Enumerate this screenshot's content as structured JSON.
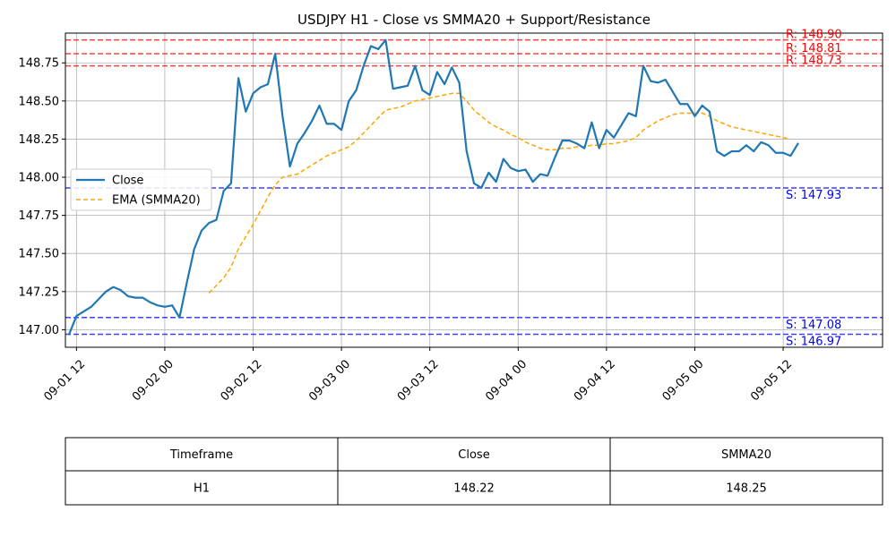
{
  "chart_data": {
    "type": "line",
    "title": "USDJPY H1 - Close vs SMMA20 + Support/Resistance",
    "xlabel": "",
    "ylabel": "",
    "ylim": [
      146.885,
      148.945
    ],
    "x_range_hours": [
      -1.5,
      109.5
    ],
    "x_ticks": [
      {
        "label": "09-01 12",
        "hour": 0
      },
      {
        "label": "09-02 00",
        "hour": 12
      },
      {
        "label": "09-02 12",
        "hour": 24
      },
      {
        "label": "09-03 00",
        "hour": 36
      },
      {
        "label": "09-03 12",
        "hour": 48
      },
      {
        "label": "09-04 00",
        "hour": 60
      },
      {
        "label": "09-04 12",
        "hour": 72
      },
      {
        "label": "09-05 00",
        "hour": 84
      },
      {
        "label": "09-05 12",
        "hour": 96
      }
    ],
    "y_ticks": [
      "147.00",
      "147.25",
      "147.50",
      "147.75",
      "148.00",
      "148.25",
      "148.50",
      "148.75"
    ],
    "grid": true,
    "legend_position": "center-left",
    "series": [
      {
        "name": "Close",
        "color": "#1f77b4",
        "style": "solid",
        "start_hour": -1,
        "values": [
          146.97,
          147.09,
          147.12,
          147.15,
          147.2,
          147.25,
          147.28,
          147.26,
          147.22,
          147.21,
          147.21,
          147.18,
          147.16,
          147.15,
          147.16,
          147.08,
          147.31,
          147.53,
          147.65,
          147.7,
          147.72,
          147.91,
          147.96,
          148.65,
          148.43,
          148.55,
          148.59,
          148.61,
          148.81,
          148.4,
          148.07,
          148.22,
          148.29,
          148.37,
          148.47,
          148.35,
          148.35,
          148.31,
          148.5,
          148.57,
          148.73,
          148.86,
          148.84,
          148.9,
          148.58,
          148.59,
          148.6,
          148.73,
          148.57,
          148.54,
          148.69,
          148.61,
          148.72,
          148.62,
          148.17,
          147.96,
          147.93,
          148.03,
          147.97,
          148.12,
          148.06,
          148.04,
          148.05,
          147.97,
          148.02,
          148.01,
          148.13,
          148.24,
          148.24,
          148.22,
          148.19,
          148.36,
          148.19,
          148.31,
          148.26,
          148.34,
          148.42,
          148.4,
          148.73,
          148.63,
          148.62,
          148.64,
          148.56,
          148.48,
          148.48,
          148.4,
          148.47,
          148.43,
          148.17,
          148.14,
          148.17,
          148.17,
          148.21,
          148.17,
          148.23,
          148.21,
          148.16,
          148.16,
          148.14,
          148.22
        ]
      },
      {
        "name": "EMA (SMMA20)",
        "color": "#ffa500",
        "style": "dashed",
        "start_hour": 18,
        "values": [
          147.24,
          147.29,
          147.34,
          147.41,
          147.53,
          147.61,
          147.69,
          147.78,
          147.87,
          147.95,
          148.0,
          148.01,
          148.02,
          148.05,
          148.08,
          148.11,
          148.14,
          148.16,
          148.18,
          148.2,
          148.24,
          148.29,
          148.34,
          148.39,
          148.44,
          148.45,
          148.46,
          148.48,
          148.5,
          148.51,
          148.52,
          148.53,
          148.54,
          148.55,
          148.55,
          148.5,
          148.44,
          148.4,
          148.36,
          148.33,
          148.31,
          148.28,
          148.26,
          148.23,
          148.21,
          148.19,
          148.18,
          148.18,
          148.19,
          148.19,
          148.2,
          148.2,
          148.21,
          148.21,
          148.22,
          148.22,
          148.23,
          148.24,
          148.26,
          148.31,
          148.34,
          148.37,
          148.39,
          148.41,
          148.42,
          148.42,
          148.42,
          148.42,
          148.4,
          148.37,
          148.35,
          148.33,
          148.32,
          148.31,
          148.3,
          148.29,
          148.28,
          148.27,
          148.26,
          148.25
        ]
      }
    ],
    "levels": [
      {
        "type": "resistance",
        "value": 148.9,
        "label": "R: 148.90",
        "color": "#ff0000"
      },
      {
        "type": "resistance",
        "value": 148.81,
        "label": "R: 148.81",
        "color": "#ff0000"
      },
      {
        "type": "resistance",
        "value": 148.73,
        "label": "R: 148.73",
        "color": "#ff0000"
      },
      {
        "type": "support",
        "value": 147.93,
        "label": "S: 147.93",
        "color": "#0000ff"
      },
      {
        "type": "support",
        "value": 147.08,
        "label": "S: 147.08",
        "color": "#0000ff"
      },
      {
        "type": "support",
        "value": 146.97,
        "label": "S: 146.97",
        "color": "#0000ff"
      }
    ]
  },
  "table": {
    "headers": [
      "Timeframe",
      "Close",
      "SMMA20"
    ],
    "rows": [
      [
        "H1",
        "148.22",
        "148.25"
      ]
    ]
  }
}
